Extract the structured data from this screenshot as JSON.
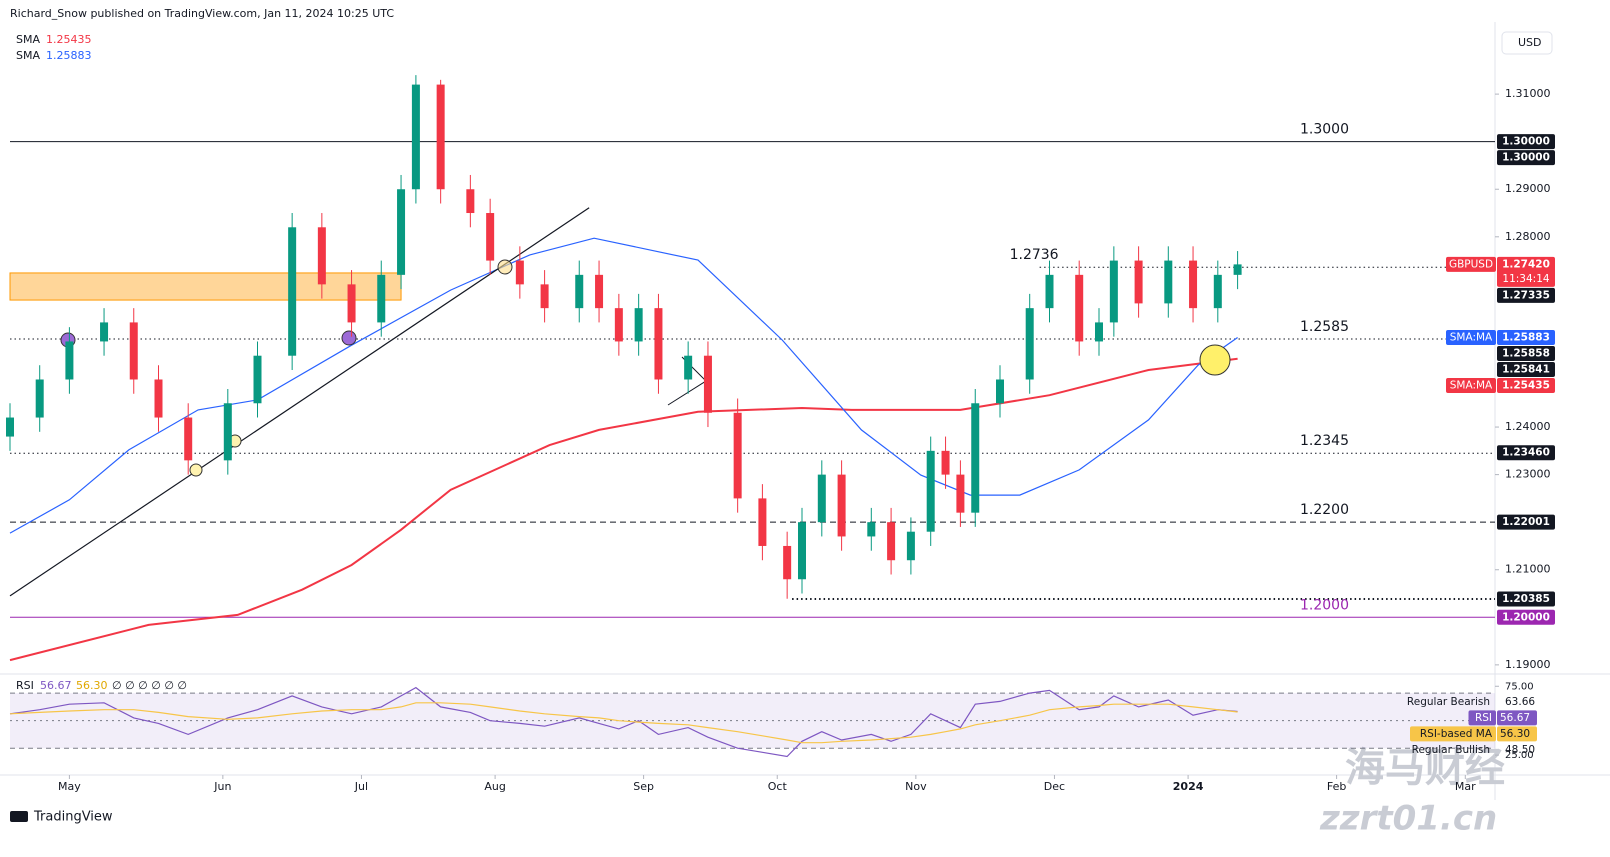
{
  "chart_data": [
    {
      "type": "candlestick",
      "header": "Richard_Snow published on TradingView.com, Jan 11, 2024 10:25 UTC",
      "currency": "USD",
      "up_color": "#089981",
      "down_color": "#f23645",
      "x": [
        0,
        6,
        12,
        19,
        25,
        30,
        36,
        44,
        50,
        57,
        63,
        69,
        75,
        79,
        82,
        87,
        93,
        97,
        103,
        108,
        115,
        119,
        123,
        127,
        131,
        137,
        141,
        147,
        152,
        157,
        160,
        164,
        168,
        174,
        178,
        182,
        186,
        189,
        192,
        195,
        200,
        206,
        210,
        216,
        220,
        223,
        228,
        234,
        239,
        244,
        248
      ],
      "open": [
        1.238,
        1.242,
        1.25,
        1.258,
        1.262,
        1.25,
        1.242,
        1.233,
        1.245,
        1.255,
        1.282,
        1.27,
        1.262,
        1.272,
        1.29,
        1.312,
        1.29,
        1.285,
        1.275,
        1.27,
        1.265,
        1.272,
        1.265,
        1.258,
        1.265,
        1.25,
        1.255,
        1.243,
        1.225,
        1.215,
        1.208,
        1.22,
        1.23,
        1.217,
        1.22,
        1.212,
        1.218,
        1.235,
        1.23,
        1.222,
        1.245,
        1.25,
        1.265,
        1.272,
        1.258,
        1.262,
        1.275,
        1.266,
        1.275,
        1.265,
        1.272
      ],
      "high": [
        1.245,
        1.253,
        1.261,
        1.265,
        1.265,
        1.253,
        1.245,
        1.248,
        1.258,
        1.285,
        1.285,
        1.273,
        1.275,
        1.293,
        1.314,
        1.313,
        1.293,
        1.288,
        1.278,
        1.273,
        1.275,
        1.275,
        1.268,
        1.268,
        1.268,
        1.258,
        1.258,
        1.246,
        1.228,
        1.218,
        1.223,
        1.233,
        1.233,
        1.223,
        1.223,
        1.221,
        1.238,
        1.238,
        1.233,
        1.248,
        1.253,
        1.268,
        1.275,
        1.275,
        1.265,
        1.278,
        1.278,
        1.278,
        1.278,
        1.275,
        1.277
      ],
      "low": [
        1.235,
        1.239,
        1.247,
        1.255,
        1.247,
        1.239,
        1.23,
        1.23,
        1.242,
        1.252,
        1.267,
        1.259,
        1.259,
        1.269,
        1.287,
        1.287,
        1.282,
        1.272,
        1.267,
        1.262,
        1.262,
        1.262,
        1.255,
        1.255,
        1.247,
        1.247,
        1.24,
        1.222,
        1.212,
        1.2039,
        1.205,
        1.217,
        1.214,
        1.214,
        1.209,
        1.209,
        1.215,
        1.227,
        1.219,
        1.219,
        1.242,
        1.247,
        1.262,
        1.255,
        1.255,
        1.259,
        1.263,
        1.263,
        1.262,
        1.262,
        1.269
      ],
      "close": [
        1.242,
        1.25,
        1.258,
        1.262,
        1.25,
        1.242,
        1.233,
        1.245,
        1.255,
        1.282,
        1.27,
        1.262,
        1.272,
        1.29,
        1.312,
        1.29,
        1.285,
        1.275,
        1.27,
        1.265,
        1.272,
        1.265,
        1.258,
        1.265,
        1.25,
        1.255,
        1.243,
        1.225,
        1.215,
        1.208,
        1.22,
        1.23,
        1.217,
        1.22,
        1.212,
        1.218,
        1.235,
        1.23,
        1.222,
        1.245,
        1.25,
        1.265,
        1.272,
        1.258,
        1.262,
        1.275,
        1.266,
        1.275,
        1.265,
        1.272,
        1.2742
      ],
      "series": [
        {
          "name": "SMA",
          "color": "#f23645",
          "label": "1.25435",
          "x": [
            0,
            28,
            46,
            59,
            69,
            79,
            89,
            109,
            119,
            139,
            160,
            170,
            192,
            210,
            230,
            248
          ],
          "values": [
            1.191,
            1.1984,
            1.2005,
            1.2058,
            1.211,
            1.2184,
            1.2268,
            1.2362,
            1.2394,
            1.2432,
            1.244,
            1.2436,
            1.2436,
            1.2467,
            1.252,
            1.25435
          ]
        },
        {
          "name": "SMA",
          "color": "#2962ff",
          "label": "1.25883",
          "x": [
            0,
            12,
            24,
            38,
            50,
            69,
            89,
            105,
            118,
            139,
            156,
            172,
            184,
            194,
            204,
            216,
            230,
            240,
            248
          ],
          "values": [
            1.2177,
            1.2247,
            1.2352,
            1.2436,
            1.2457,
            1.2572,
            1.2688,
            1.2762,
            1.2797,
            1.2751,
            1.2583,
            1.2394,
            1.2299,
            1.2257,
            1.2257,
            1.231,
            1.2415,
            1.253,
            1.25883
          ]
        }
      ],
      "levels": [
        {
          "value": 1.3,
          "label": "1.3000",
          "color": "#131722",
          "style": "solid"
        },
        {
          "value": 1.2736,
          "label": "1.2736",
          "color": "#131722",
          "style": "dotted",
          "x0": 208
        },
        {
          "value": 1.2585,
          "label": "1.2585",
          "color": "#131722",
          "style": "dotted"
        },
        {
          "value": 1.2345,
          "label": "1.2345",
          "color": "#131722",
          "style": "dotted"
        },
        {
          "value": 1.22,
          "label": "1.2200",
          "color": "#131722",
          "style": "dashed"
        },
        {
          "value": 1.20385,
          "color": "#131722",
          "style": "dotted",
          "x0": 158
        },
        {
          "value": 1.2,
          "label": "1.2000",
          "color": "#9c27b0",
          "style": "solid"
        }
      ],
      "zone": {
        "color": "#ffcc80",
        "x": [
          0,
          79
        ],
        "values": [
          1.2667,
          1.2724
        ]
      },
      "trendline": {
        "color": "#131722",
        "x": [
          0,
          117
        ],
        "values": [
          1.2045,
          1.2861
        ]
      },
      "badges": [
        {
          "value": 1.3,
          "label": "1.30000",
          "color": "#131722"
        },
        {
          "value": 1.3,
          "label": "1.30000",
          "color": "#131722"
        },
        {
          "name": "GBPUSD",
          "value": 1.2742,
          "label": "1.27420",
          "sub": "11:34:14",
          "color": "#f23645"
        },
        {
          "value": 1.27335,
          "label": "1.27335",
          "color": "#131722"
        },
        {
          "name": "SMA:MA",
          "value": 1.25883,
          "label": "1.25883",
          "color": "#2962ff"
        },
        {
          "value": 1.25858,
          "label": "1.25858",
          "color": "#131722"
        },
        {
          "value": 1.25841,
          "label": "1.25841",
          "color": "#131722"
        },
        {
          "name": "SMA:MA",
          "value": 1.25435,
          "label": "1.25435",
          "color": "#f23645"
        },
        {
          "value": 1.2346,
          "label": "1.23460",
          "color": "#131722"
        },
        {
          "value": 1.22001,
          "label": "1.22001",
          "color": "#131722"
        },
        {
          "value": 1.20385,
          "label": "1.20385",
          "color": "#131722"
        },
        {
          "value": 1.2,
          "label": "1.20000",
          "color": "#9c27b0"
        }
      ],
      "xlim": [
        0,
        300
      ],
      "ylim": [
        1.1885,
        1.3239
      ],
      "xticks": [
        {
          "value": 12,
          "label": "May"
        },
        {
          "value": 43,
          "label": "Jun"
        },
        {
          "value": 71,
          "label": "Jul"
        },
        {
          "value": 98,
          "label": "Aug"
        },
        {
          "value": 128,
          "label": "Sep"
        },
        {
          "value": 155,
          "label": "Oct"
        },
        {
          "value": 183,
          "label": "Nov"
        },
        {
          "value": 211,
          "label": "Dec"
        },
        {
          "value": 238,
          "label": "2024"
        },
        {
          "value": 268,
          "label": "Feb"
        },
        {
          "value": 294,
          "label": "Mar"
        }
      ],
      "yticks": [
        {
          "value": 1.31,
          "label": "1.31000"
        },
        {
          "value": 1.29,
          "label": "1.29000"
        },
        {
          "value": 1.28,
          "label": "1.28000"
        },
        {
          "value": 1.24,
          "label": "1.24000"
        },
        {
          "value": 1.23,
          "label": "1.23000"
        },
        {
          "value": 1.21,
          "label": "1.21000"
        },
        {
          "value": 1.19,
          "label": "1.19000"
        }
      ],
      "grid": false,
      "footer": "TradingView",
      "watermark": {
        "title": "海马财经",
        "url": "zzrt01.cn"
      }
    },
    {
      "type": "line",
      "title": "RSI",
      "extras": "∅ ∅ ∅ ∅ ∅ ∅",
      "x": [
        0,
        6,
        12,
        19,
        25,
        30,
        36,
        44,
        50,
        57,
        63,
        69,
        75,
        79,
        82,
        87,
        93,
        97,
        103,
        108,
        115,
        119,
        123,
        127,
        131,
        137,
        141,
        147,
        152,
        157,
        160,
        164,
        168,
        174,
        178,
        182,
        186,
        189,
        192,
        195,
        200,
        206,
        210,
        216,
        220,
        223,
        228,
        234,
        239,
        244,
        248
      ],
      "series": [
        {
          "name": "RSI",
          "color": "#7e57c2",
          "label": "56.67",
          "text_color": "#ffffff",
          "values": [
            55,
            58,
            62,
            63,
            52,
            48,
            40,
            52,
            58,
            68,
            60,
            55,
            60,
            68,
            74,
            60,
            56,
            50,
            48,
            46,
            52,
            48,
            44,
            50,
            40,
            45,
            38,
            30,
            27,
            24,
            35,
            42,
            36,
            40,
            35,
            40,
            55,
            50,
            45,
            62,
            64,
            70,
            72,
            58,
            60,
            68,
            60,
            65,
            54,
            58,
            56.67
          ]
        },
        {
          "name": "RSI-based MA",
          "color": "#f7c548",
          "label": "56.30",
          "text_color": "#131722",
          "values": [
            55,
            56,
            57,
            58,
            58,
            56,
            53,
            51,
            52,
            55,
            57,
            58,
            58,
            60,
            63,
            63,
            62,
            60,
            57,
            55,
            53,
            52,
            50,
            49,
            48,
            47,
            45,
            42,
            39,
            36,
            34,
            34,
            35,
            36,
            37,
            38,
            40,
            42,
            44,
            47,
            50,
            54,
            58,
            60,
            61,
            62,
            62,
            62,
            60,
            58,
            56.3
          ]
        }
      ],
      "divergences": [
        {
          "name": "Regular Bearish",
          "value": 63.66
        },
        {
          "name": "Regular Bullish",
          "value": 48.5,
          "label": "48.50"
        }
      ],
      "bands": [
        70,
        50,
        30
      ],
      "xlim": [
        0,
        300
      ],
      "ylim": [
        12,
        81
      ],
      "yticks": [
        {
          "value": 75,
          "label": "75.00"
        },
        {
          "value": 25,
          "label": "25.00"
        }
      ]
    }
  ]
}
